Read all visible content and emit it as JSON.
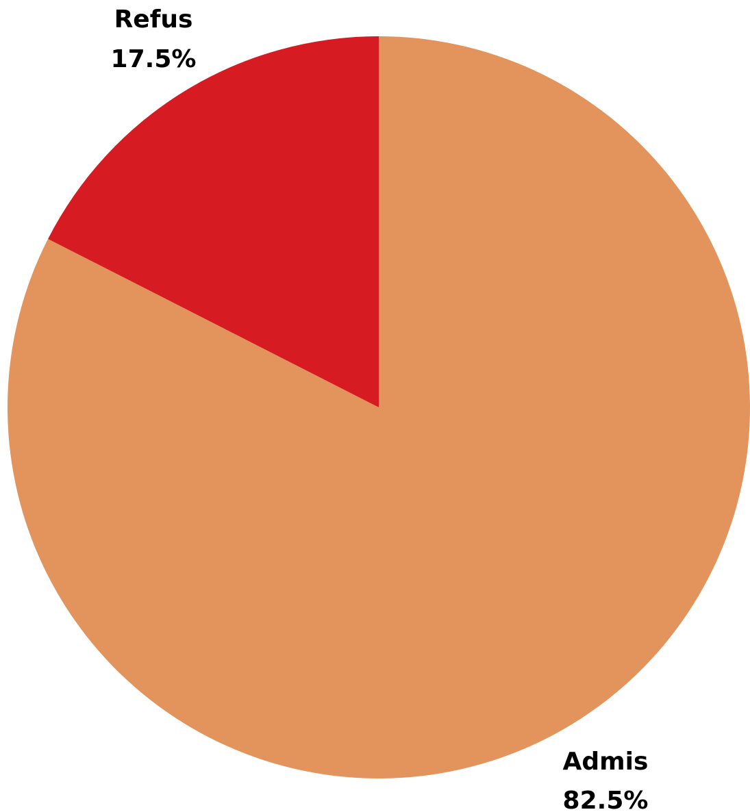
{
  "chart_data": {
    "type": "pie",
    "title": "",
    "slices": [
      {
        "label": "Admis",
        "value": 82.5,
        "display": "82.5%",
        "color": "#E3945C"
      },
      {
        "label": "Refus",
        "value": 17.5,
        "display": "17.5%",
        "color": "#D71B22"
      }
    ],
    "start_angle": "top",
    "direction": "clockwise",
    "legend": "none"
  }
}
